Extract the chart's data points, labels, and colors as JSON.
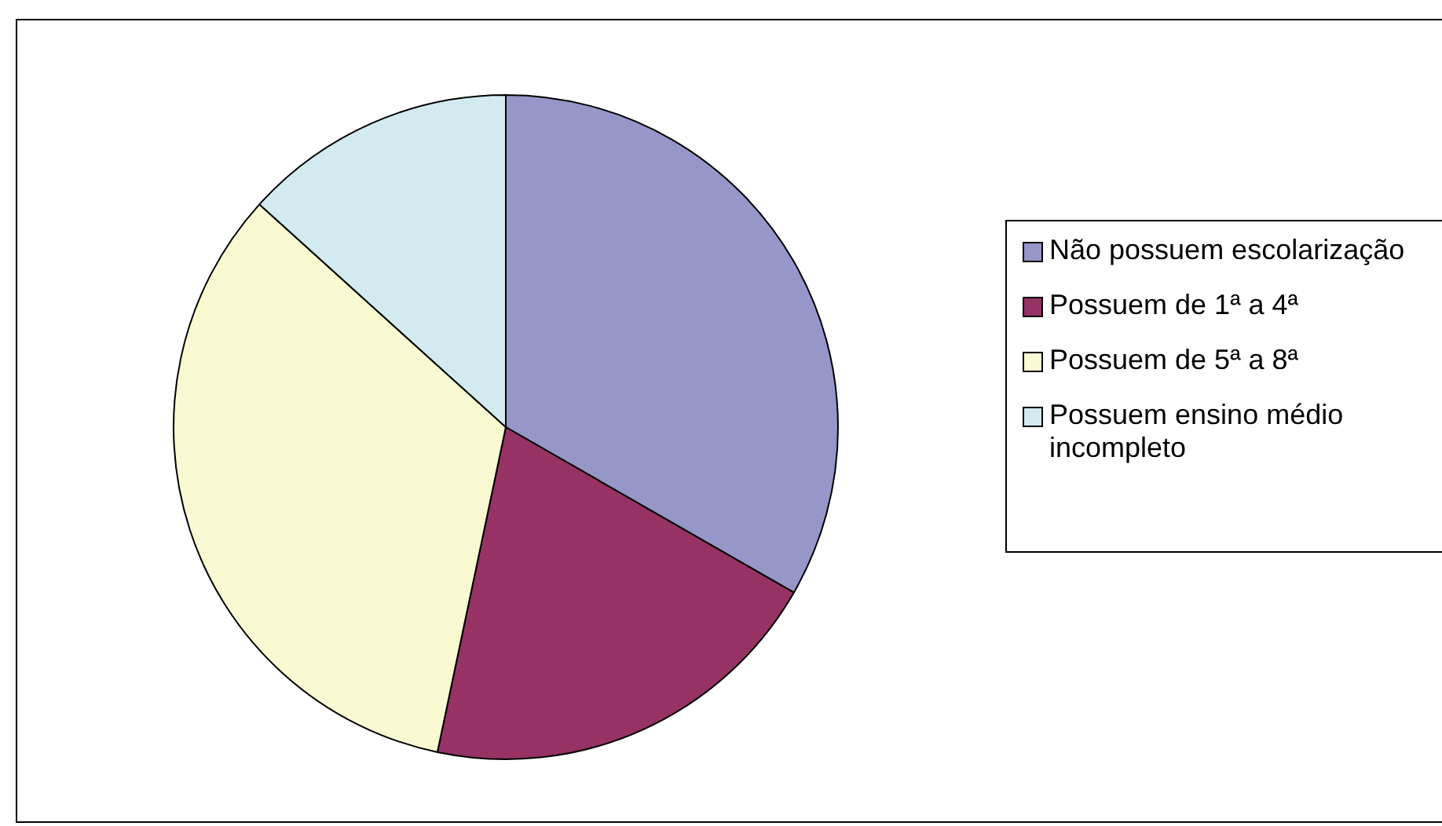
{
  "chart_data": {
    "type": "pie",
    "categories": [
      "Não possuem escolarização",
      "Possuem de 1ª a 4ª",
      "Possuem de 5ª a 8ª",
      "Possuem ensino médio incompleto"
    ],
    "values": [
      33.3,
      20,
      33.4,
      13.3
    ],
    "colors": [
      "#9696c8",
      "#963264",
      "#fafad2",
      "#d2ebf0"
    ],
    "legend": "right"
  }
}
